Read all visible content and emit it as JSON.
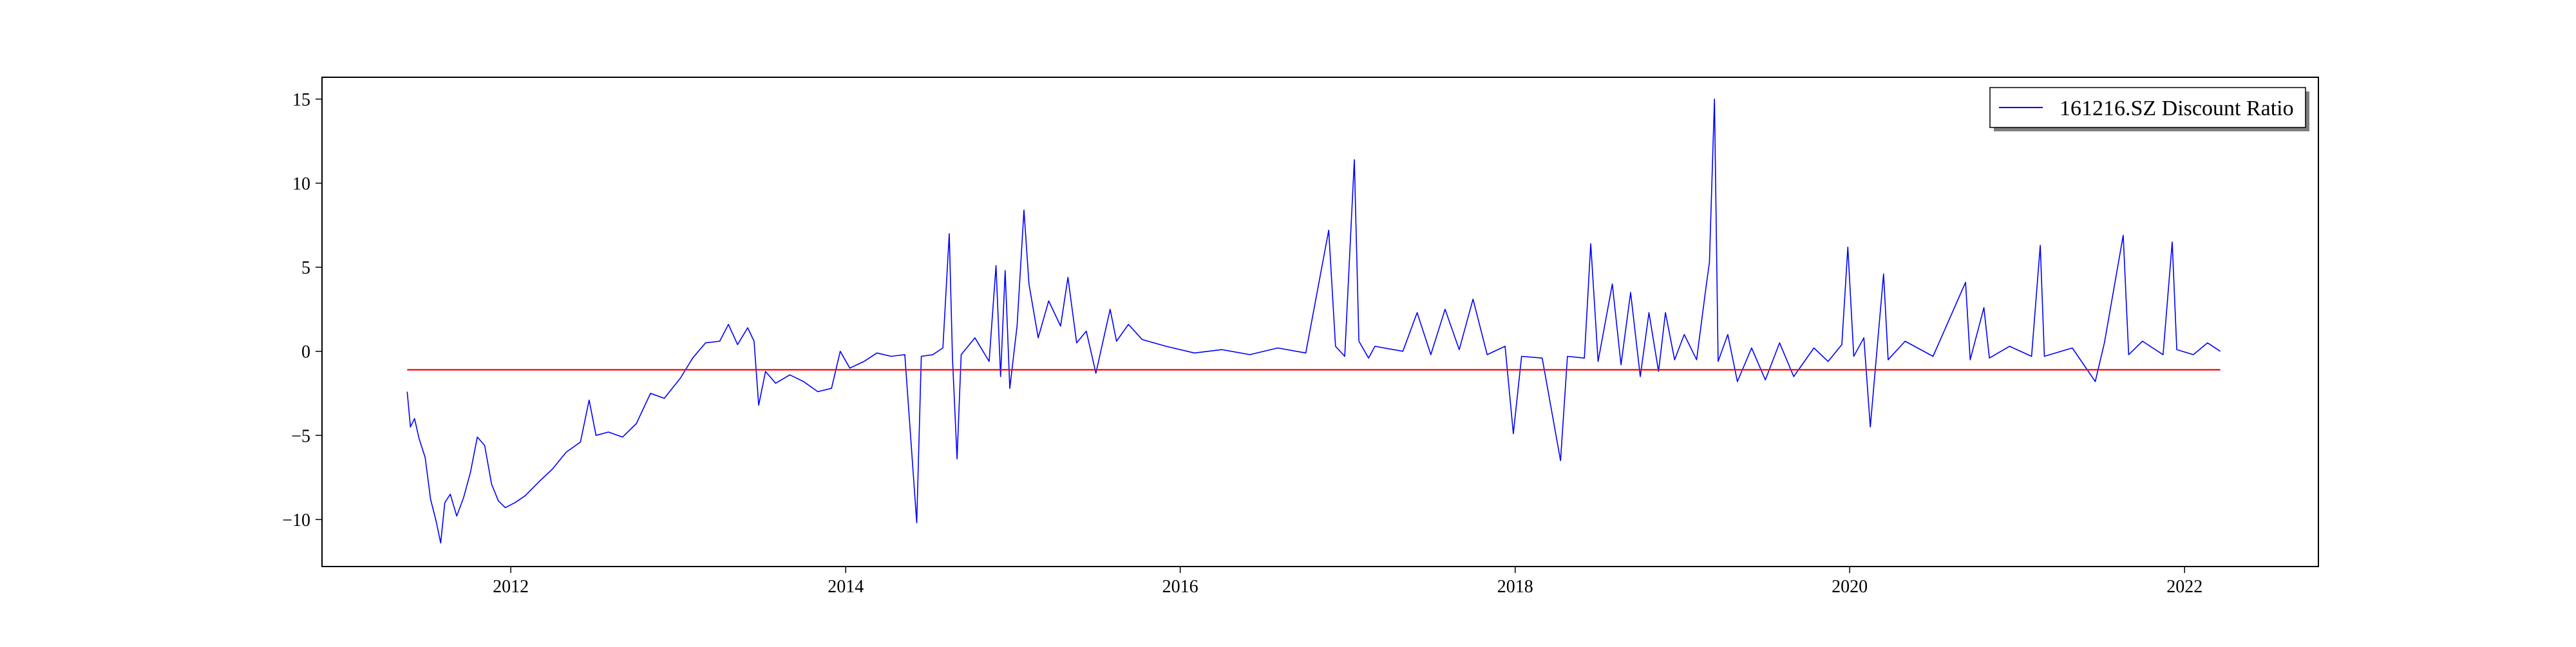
{
  "chart_data": {
    "type": "line",
    "title": "",
    "xlabel": "",
    "ylabel": "",
    "x_range": [
      "2010-11-15",
      "2022-10-20"
    ],
    "ylim": [
      -12.8,
      16.3
    ],
    "x_ticks": [
      {
        "value": "2012-01-01",
        "label": "2012"
      },
      {
        "value": "2014-01-01",
        "label": "2014"
      },
      {
        "value": "2016-01-01",
        "label": "2016"
      },
      {
        "value": "2018-01-01",
        "label": "2018"
      },
      {
        "value": "2020-01-01",
        "label": "2020"
      },
      {
        "value": "2022-01-01",
        "label": "2022"
      }
    ],
    "y_ticks": [
      {
        "value": -10,
        "label": "−10"
      },
      {
        "value": -5,
        "label": "−5"
      },
      {
        "value": 0,
        "label": "0"
      },
      {
        "value": 5,
        "label": "5"
      },
      {
        "value": 10,
        "label": "10"
      },
      {
        "value": 15,
        "label": "15"
      }
    ],
    "grid": false,
    "legend": {
      "placement": "top-right",
      "entries": [
        "161216.SZ Discount Ratio"
      ]
    },
    "series": [
      {
        "name": "161216.SZ Discount Ratio",
        "color": "#0000ff",
        "points": [
          [
            "2011-05-20",
            -2.4
          ],
          [
            "2011-05-27",
            -4.5
          ],
          [
            "2011-06-05",
            -4.0
          ],
          [
            "2011-06-15",
            -5.2
          ],
          [
            "2011-06-28",
            -6.3
          ],
          [
            "2011-07-10",
            -8.8
          ],
          [
            "2011-07-22",
            -10.1
          ],
          [
            "2011-08-01",
            -11.4
          ],
          [
            "2011-08-10",
            -9.0
          ],
          [
            "2011-08-22",
            -8.5
          ],
          [
            "2011-09-05",
            -9.8
          ],
          [
            "2011-09-20",
            -8.7
          ],
          [
            "2011-10-05",
            -7.2
          ],
          [
            "2011-10-20",
            -5.1
          ],
          [
            "2011-11-05",
            -5.6
          ],
          [
            "2011-11-20",
            -7.9
          ],
          [
            "2011-12-05",
            -8.9
          ],
          [
            "2011-12-20",
            -9.3
          ],
          [
            "2012-01-10",
            -9.0
          ],
          [
            "2012-02-01",
            -8.6
          ],
          [
            "2012-03-01",
            -7.8
          ],
          [
            "2012-04-01",
            -7.0
          ],
          [
            "2012-05-01",
            -6.0
          ],
          [
            "2012-06-01",
            -5.4
          ],
          [
            "2012-06-20",
            -2.9
          ],
          [
            "2012-07-05",
            -5.0
          ],
          [
            "2012-08-01",
            -4.8
          ],
          [
            "2012-09-01",
            -5.1
          ],
          [
            "2012-10-01",
            -4.3
          ],
          [
            "2012-11-01",
            -2.5
          ],
          [
            "2012-12-01",
            -2.8
          ],
          [
            "2013-01-05",
            -1.6
          ],
          [
            "2013-02-01",
            -0.4
          ],
          [
            "2013-03-01",
            0.5
          ],
          [
            "2013-04-01",
            0.6
          ],
          [
            "2013-04-20",
            1.6
          ],
          [
            "2013-05-10",
            0.4
          ],
          [
            "2013-06-01",
            1.4
          ],
          [
            "2013-06-15",
            0.6
          ],
          [
            "2013-06-25",
            -3.2
          ],
          [
            "2013-07-10",
            -1.2
          ],
          [
            "2013-08-01",
            -1.9
          ],
          [
            "2013-09-01",
            -1.4
          ],
          [
            "2013-10-01",
            -1.8
          ],
          [
            "2013-11-01",
            -2.4
          ],
          [
            "2013-12-01",
            -2.2
          ],
          [
            "2013-12-20",
            0.0
          ],
          [
            "2014-01-10",
            -1.0
          ],
          [
            "2014-02-10",
            -0.6
          ],
          [
            "2014-03-10",
            -0.1
          ],
          [
            "2014-04-10",
            -0.3
          ],
          [
            "2014-05-10",
            -0.2
          ],
          [
            "2014-06-05",
            -10.2
          ],
          [
            "2014-06-15",
            -0.3
          ],
          [
            "2014-07-10",
            -0.2
          ],
          [
            "2014-08-01",
            0.2
          ],
          [
            "2014-08-15",
            7.0
          ],
          [
            "2014-08-22",
            -0.4
          ],
          [
            "2014-09-01",
            -6.4
          ],
          [
            "2014-09-10",
            -0.2
          ],
          [
            "2014-10-10",
            0.8
          ],
          [
            "2014-11-10",
            -0.6
          ],
          [
            "2014-11-25",
            5.1
          ],
          [
            "2014-12-05",
            -1.5
          ],
          [
            "2014-12-15",
            4.8
          ],
          [
            "2014-12-25",
            -2.2
          ],
          [
            "2015-01-10",
            1.5
          ],
          [
            "2015-01-25",
            8.4
          ],
          [
            "2015-02-05",
            4.0
          ],
          [
            "2015-02-25",
            0.8
          ],
          [
            "2015-03-20",
            3.0
          ],
          [
            "2015-04-15",
            1.5
          ],
          [
            "2015-05-01",
            4.4
          ],
          [
            "2015-05-20",
            0.5
          ],
          [
            "2015-06-10",
            1.2
          ],
          [
            "2015-07-01",
            -1.3
          ],
          [
            "2015-08-01",
            2.5
          ],
          [
            "2015-08-15",
            0.6
          ],
          [
            "2015-09-10",
            1.6
          ],
          [
            "2015-10-10",
            0.7
          ],
          [
            "2015-12-01",
            0.3
          ],
          [
            "2016-02-01",
            -0.1
          ],
          [
            "2016-04-01",
            0.1
          ],
          [
            "2016-06-01",
            -0.2
          ],
          [
            "2016-08-01",
            0.2
          ],
          [
            "2016-10-01",
            -0.1
          ],
          [
            "2016-11-20",
            7.2
          ],
          [
            "2016-12-05",
            0.3
          ],
          [
            "2016-12-25",
            -0.3
          ],
          [
            "2017-01-15",
            11.4
          ],
          [
            "2017-01-25",
            0.6
          ],
          [
            "2017-02-15",
            -0.4
          ],
          [
            "2017-03-01",
            0.3
          ],
          [
            "2017-05-01",
            0.0
          ],
          [
            "2017-06-01",
            2.3
          ],
          [
            "2017-07-01",
            -0.2
          ],
          [
            "2017-08-01",
            2.5
          ],
          [
            "2017-09-01",
            0.1
          ],
          [
            "2017-10-01",
            3.1
          ],
          [
            "2017-11-01",
            -0.2
          ],
          [
            "2017-12-10",
            0.3
          ],
          [
            "2017-12-28",
            -4.9
          ],
          [
            "2018-01-15",
            -0.3
          ],
          [
            "2018-03-01",
            -0.4
          ],
          [
            "2018-04-10",
            -6.5
          ],
          [
            "2018-04-25",
            -0.3
          ],
          [
            "2018-06-01",
            -0.4
          ],
          [
            "2018-06-15",
            6.4
          ],
          [
            "2018-07-01",
            -0.6
          ],
          [
            "2018-08-01",
            4.0
          ],
          [
            "2018-08-20",
            -0.8
          ],
          [
            "2018-09-10",
            3.5
          ],
          [
            "2018-10-01",
            -1.5
          ],
          [
            "2018-10-20",
            2.3
          ],
          [
            "2018-11-10",
            -1.2
          ],
          [
            "2018-11-25",
            2.3
          ],
          [
            "2018-12-15",
            -0.5
          ],
          [
            "2019-01-05",
            1.0
          ],
          [
            "2019-02-01",
            -0.5
          ],
          [
            "2019-02-20",
            3.5
          ],
          [
            "2019-03-01",
            5.3
          ],
          [
            "2019-03-12",
            15.0
          ],
          [
            "2019-03-20",
            -0.6
          ],
          [
            "2019-04-10",
            1.0
          ],
          [
            "2019-05-01",
            -1.8
          ],
          [
            "2019-06-01",
            0.2
          ],
          [
            "2019-07-01",
            -1.7
          ],
          [
            "2019-08-01",
            0.5
          ],
          [
            "2019-09-01",
            -1.5
          ],
          [
            "2019-10-15",
            0.2
          ],
          [
            "2019-11-15",
            -0.6
          ],
          [
            "2019-12-15",
            0.4
          ],
          [
            "2019-12-28",
            6.2
          ],
          [
            "2020-01-10",
            -0.3
          ],
          [
            "2020-02-01",
            0.8
          ],
          [
            "2020-02-15",
            -4.5
          ],
          [
            "2020-03-01",
            0.2
          ],
          [
            "2020-03-15",
            4.6
          ],
          [
            "2020-03-25",
            -0.5
          ],
          [
            "2020-05-01",
            0.6
          ],
          [
            "2020-07-01",
            -0.3
          ],
          [
            "2020-09-10",
            4.1
          ],
          [
            "2020-09-20",
            -0.5
          ],
          [
            "2020-10-20",
            2.6
          ],
          [
            "2020-11-01",
            -0.4
          ],
          [
            "2020-12-15",
            0.3
          ],
          [
            "2021-02-01",
            -0.3
          ],
          [
            "2021-02-20",
            6.3
          ],
          [
            "2021-03-01",
            -0.3
          ],
          [
            "2021-05-01",
            0.2
          ],
          [
            "2021-06-20",
            -1.8
          ],
          [
            "2021-07-10",
            0.5
          ],
          [
            "2021-08-20",
            6.9
          ],
          [
            "2021-09-01",
            -0.2
          ],
          [
            "2021-10-01",
            0.6
          ],
          [
            "2021-11-15",
            -0.2
          ],
          [
            "2021-12-05",
            6.5
          ],
          [
            "2021-12-15",
            0.1
          ],
          [
            "2022-01-20",
            -0.2
          ],
          [
            "2022-02-20",
            0.5
          ],
          [
            "2022-03-20",
            0.0
          ]
        ]
      },
      {
        "name": "",
        "color": "#ff0000",
        "points": [
          [
            "2011-05-20",
            -1.1
          ],
          [
            "2022-03-20",
            -1.1
          ]
        ]
      }
    ]
  }
}
